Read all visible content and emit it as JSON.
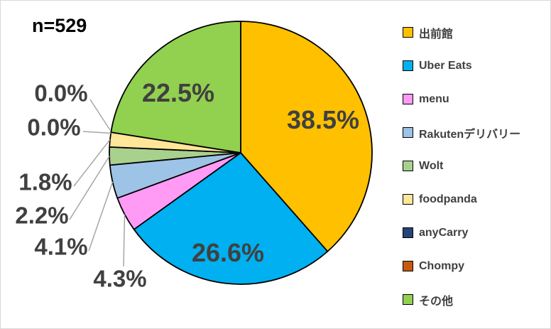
{
  "frame": {
    "background_color": "#FFFFFF",
    "border_color": "#D9D9D9"
  },
  "chart_data": {
    "type": "pie",
    "title": "",
    "sample_size_label": "n=529",
    "start_angle_deg": 0,
    "direction": "clockwise",
    "legend_position": "right",
    "label_color": "#404040",
    "leader_line_color": "#A6A6A6",
    "slice_border_color": "#000000",
    "slices": [
      {
        "label": "出前館",
        "value": 38.5,
        "display": "38.5%",
        "color": "#FFC000",
        "label_mode": "inside"
      },
      {
        "label": "Uber Eats",
        "value": 26.6,
        "display": "26.6%",
        "color": "#00B0F0",
        "label_mode": "inside"
      },
      {
        "label": "menu",
        "value": 4.3,
        "display": "4.3%",
        "color": "#FF9BF5",
        "label_mode": "callout"
      },
      {
        "label": "Rakutenデリバリー",
        "value": 4.1,
        "display": "4.1%",
        "color": "#9DC3E6",
        "label_mode": "callout"
      },
      {
        "label": "Wolt",
        "value": 2.2,
        "display": "2.2%",
        "color": "#A9D18E",
        "label_mode": "callout"
      },
      {
        "label": "foodpanda",
        "value": 1.8,
        "display": "1.8%",
        "color": "#FFE699",
        "label_mode": "callout"
      },
      {
        "label": "anyCarry",
        "value": 0.0,
        "display": "0.0%",
        "color": "#264478",
        "label_mode": "callout"
      },
      {
        "label": "Chompy",
        "value": 0.0,
        "display": "0.0%",
        "color": "#C55A11",
        "label_mode": "callout"
      },
      {
        "label": "その他",
        "value": 22.5,
        "display": "22.5%",
        "color": "#92D050",
        "label_mode": "inside"
      }
    ]
  }
}
